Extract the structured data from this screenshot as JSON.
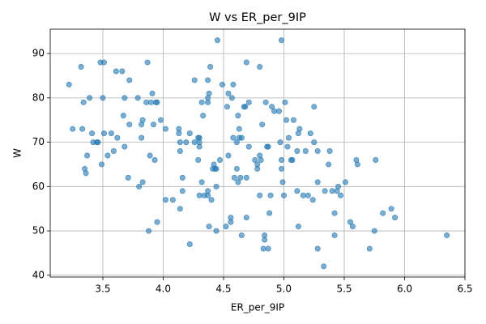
{
  "chart_data": {
    "type": "scatter",
    "title": "W vs ER_per_9IP",
    "x_label": "ER_per_9IP",
    "y_label": "W",
    "x": [
      3.22,
      3.25,
      3.32,
      3.33,
      3.34,
      3.35,
      3.36,
      3.37,
      3.39,
      3.41,
      3.42,
      3.45,
      3.46,
      3.48,
      3.49,
      3.51,
      3.5,
      3.51,
      3.54,
      3.57,
      3.59,
      3.61,
      3.62,
      3.66,
      3.67,
      3.68,
      3.68,
      3.71,
      3.72,
      3.72,
      3.79,
      3.8,
      3.82,
      3.82,
      3.83,
      3.83,
      3.86,
      3.87,
      3.88,
      3.89,
      3.9,
      3.91,
      3.92,
      3.93,
      3.94,
      3.95,
      3.95,
      3.98,
      4.02,
      4.02,
      4.08,
      4.13,
      4.13,
      4.14,
      4.14,
      4.14,
      4.16,
      4.16,
      4.19,
      4.22,
      4.22,
      4.26,
      4.26,
      4.29,
      4.29,
      4.3,
      4.3,
      4.3,
      4.3,
      4.32,
      4.32,
      4.33,
      4.34,
      4.37,
      4.37,
      4.37,
      4.37,
      4.37,
      4.38,
      4.38,
      4.39,
      4.4,
      4.41,
      4.42,
      4.43,
      4.44,
      4.44,
      4.44,
      4.45,
      4.47,
      4.49,
      4.52,
      4.53,
      4.54,
      4.54,
      4.56,
      4.56,
      4.57,
      4.58,
      4.58,
      4.59,
      4.61,
      4.61,
      4.62,
      4.63,
      4.63,
      4.62,
      4.64,
      4.65,
      4.65,
      4.67,
      4.68,
      4.69,
      4.69,
      4.69,
      4.71,
      4.71,
      4.76,
      4.78,
      4.78,
      4.8,
      4.8,
      4.8,
      4.81,
      4.83,
      4.82,
      4.84,
      4.84,
      4.85,
      4.86,
      4.87,
      4.87,
      4.88,
      4.89,
      4.9,
      4.92,
      4.96,
      4.97,
      4.98,
      4.98,
      4.98,
      4.99,
      5.0,
      5.01,
      5.02,
      5.03,
      5.04,
      5.06,
      5.07,
      5.08,
      5.11,
      5.11,
      5.12,
      5.12,
      5.13,
      5.16,
      5.18,
      5.2,
      5.22,
      5.24,
      5.25,
      5.25,
      5.28,
      5.28,
      5.28,
      5.33,
      5.34,
      5.37,
      5.38,
      5.4,
      5.42,
      5.42,
      5.44,
      5.45,
      5.47,
      5.51,
      5.55,
      5.57,
      5.6,
      5.61,
      5.71,
      5.75,
      5.76,
      5.82,
      5.89,
      5.92,
      6.35
    ],
    "values": [
      83,
      73,
      87,
      73,
      79,
      64,
      63,
      67,
      80,
      72,
      70,
      70,
      70,
      88,
      65,
      88,
      80,
      72,
      67,
      72,
      68,
      86,
      71,
      86,
      76,
      69,
      80,
      62,
      84,
      74,
      80,
      60,
      71,
      74,
      75,
      61,
      79,
      88,
      50,
      67,
      79,
      81,
      74,
      66,
      79,
      79,
      52,
      75,
      73,
      57,
      57,
      72,
      73,
      70,
      68,
      55,
      62,
      59,
      70,
      72,
      47,
      84,
      70,
      71,
      66,
      71,
      58,
      70,
      69,
      79,
      61,
      76,
      58,
      80,
      84,
      79,
      58,
      59,
      51,
      81,
      87,
      57,
      64,
      65,
      64,
      64,
      50,
      60,
      93,
      66,
      83,
      51,
      78,
      67,
      81,
      52,
      53,
      80,
      83,
      71,
      62,
      64,
      70,
      61,
      71,
      73,
      76,
      62,
      49,
      71,
      78,
      78,
      88,
      53,
      62,
      79,
      69,
      66,
      64,
      65,
      87,
      67,
      58,
      66,
      46,
      74,
      48,
      49,
      79,
      69,
      69,
      46,
      54,
      58,
      78,
      77,
      77,
      70,
      93,
      66,
      64,
      61,
      58,
      79,
      75,
      69,
      71,
      66,
      66,
      75,
      68,
      59,
      72,
      51,
      73,
      58,
      68,
      58,
      72,
      57,
      78,
      70,
      61,
      68,
      46,
      42,
      59,
      65,
      68,
      59,
      54,
      49,
      59,
      60,
      58,
      61,
      52,
      51,
      66,
      65,
      46,
      50,
      66,
      54,
      55,
      53,
      49
    ],
    "color": "#1f77b4",
    "grid": true,
    "xlim": [
      3.064,
      6.5
    ],
    "ylim": [
      39.6,
      95.5
    ],
    "xticks": [
      3.5,
      {
        "value": 4,
        "label": "4.0"
      },
      4.5,
      {
        "value": 5,
        "label": "5.0"
      },
      5.5,
      {
        "value": 6,
        "label": "6.0"
      },
      6.5
    ],
    "yticks": [
      40,
      50,
      60,
      70,
      80,
      90
    ]
  }
}
